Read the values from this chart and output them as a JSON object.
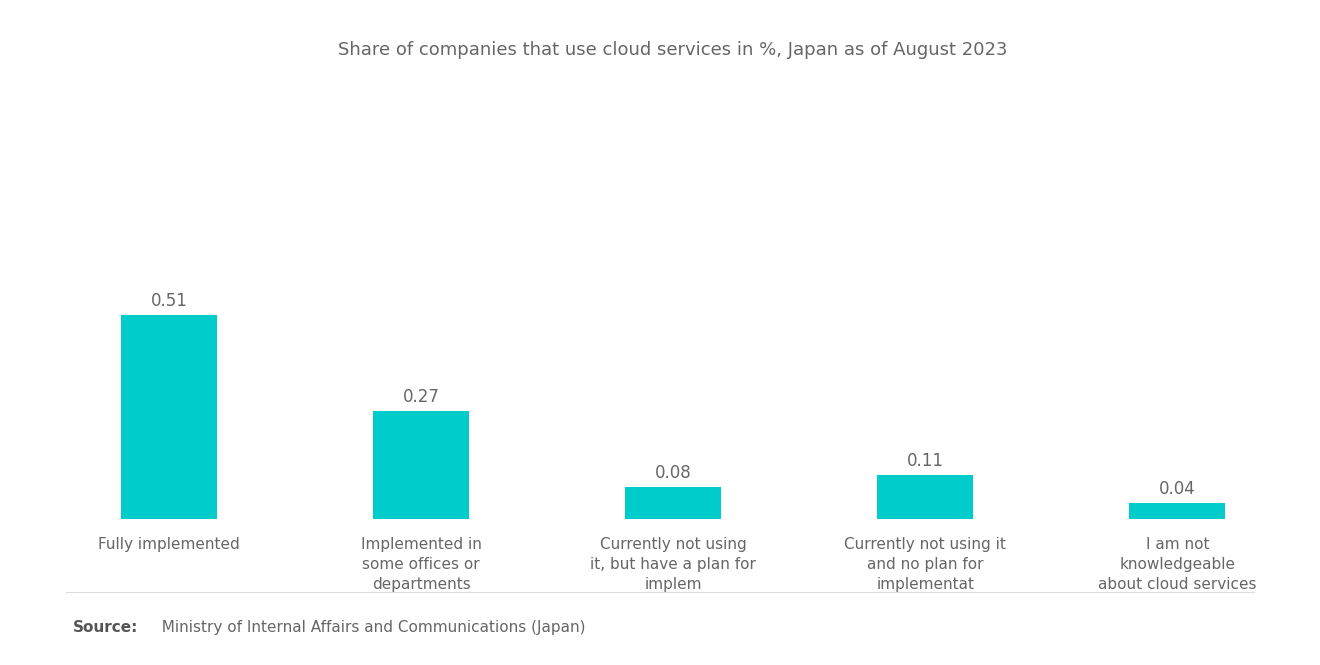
{
  "title": "Share of companies that use cloud services in %, Japan as of August 2023",
  "categories": [
    "Fully implemented",
    "Implemented in\nsome offices or\ndepartments",
    "Currently not using\nit, but have a plan for\nimplem",
    "Currently not using it\nand no plan for\nimplementat",
    "I am not\nknowledgeable\nabout cloud services"
  ],
  "values": [
    0.51,
    0.27,
    0.08,
    0.11,
    0.04
  ],
  "bar_color": "#00CCCC",
  "background_color": "#ffffff",
  "ylim": [
    0,
    1.1
  ],
  "value_labels": [
    "0.51",
    "0.27",
    "0.08",
    "0.11",
    "0.04"
  ],
  "source_bold": "Source:",
  "source_text": "  Ministry of Internal Affairs and Communications (Japan)",
  "title_fontsize": 13,
  "label_fontsize": 11,
  "value_fontsize": 12,
  "source_fontsize": 11,
  "bar_width": 0.38
}
